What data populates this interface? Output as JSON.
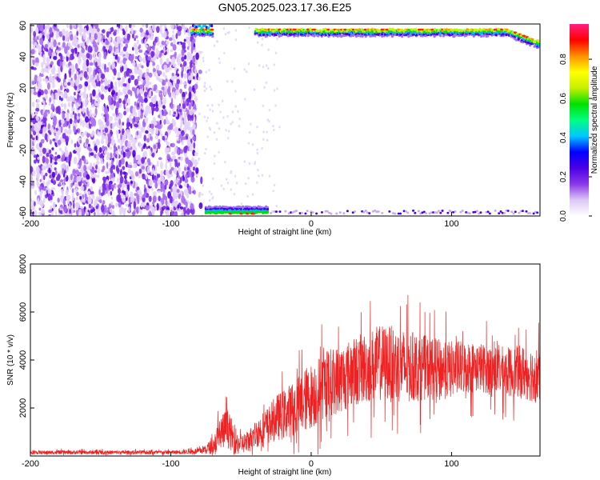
{
  "title": "GN05.2025.023.17.36.E25",
  "chart_data": [
    {
      "type": "heatmap",
      "title": "GN05.2025.023.17.36.E25",
      "xlabel": "Height of straight line (km)",
      "ylabel": "Frequency (Hz)",
      "xlim": [
        -200,
        163
      ],
      "ylim": [
        -62,
        61
      ],
      "x_ticks": [
        -200,
        -100,
        0,
        100
      ],
      "y_ticks": [
        -60,
        -40,
        -20,
        0,
        20,
        40,
        60
      ],
      "grid": false,
      "colorbar": {
        "label": "Normalized spectral amplitude",
        "range": [
          0,
          0.98
        ],
        "ticks": [
          0.0,
          0.2,
          0.4,
          0.6,
          0.8
        ],
        "colors": [
          "#ffffff",
          "#dcc7f5",
          "#8a38e8",
          "#4b00e6",
          "#0000ff",
          "#00c8ff",
          "#00ff80",
          "#00e000",
          "#c8f000",
          "#ffff00",
          "#ff9000",
          "#ff0000",
          "#ff2080"
        ]
      },
      "regions": [
        {
          "description": "diffuse noise",
          "x_range": [
            -200,
            -82
          ],
          "y_range": [
            -62,
            61
          ],
          "amplitude": 0.1
        },
        {
          "description": "band near +Nyquist",
          "x_range": [
            -85,
            163
          ],
          "y_range": [
            48,
            60
          ],
          "amplitude": 0.9
        },
        {
          "description": "band near -Nyquist",
          "x_range": [
            -75,
            -30
          ],
          "y_range": [
            -62,
            -56
          ],
          "amplitude": 0.7
        }
      ]
    },
    {
      "type": "line",
      "xlabel": "Height of straight line (km)",
      "ylabel": "SNR (10 * v/v)",
      "xlim": [
        -200,
        163
      ],
      "ylim": [
        0,
        8000
      ],
      "x_ticks": [
        -200,
        -100,
        0,
        100
      ],
      "y_ticks": [
        2000,
        4000,
        6000,
        8000
      ],
      "grid": false,
      "series": [
        {
          "color": "#ee2222",
          "x": [
            -200,
            -180,
            -160,
            -140,
            -120,
            -100,
            -80,
            -70,
            -65,
            -60,
            -55,
            -50,
            -45,
            -40,
            -35,
            -30,
            -25,
            -20,
            -15,
            -10,
            -5,
            0,
            5,
            10,
            20,
            30,
            40,
            50,
            60,
            70,
            80,
            90,
            100,
            110,
            120,
            130,
            140,
            150,
            160,
            163
          ],
          "y": [
            150,
            150,
            150,
            150,
            150,
            150,
            200,
            400,
            900,
            1200,
            700,
            500,
            600,
            900,
            1100,
            1300,
            1600,
            1700,
            1900,
            2000,
            2300,
            2500,
            2700,
            3000,
            3200,
            3500,
            3700,
            3900,
            3800,
            3700,
            3700,
            3600,
            3600,
            3700,
            3700,
            3600,
            3500,
            3500,
            3400,
            3300
          ],
          "spread": [
            100,
            100,
            100,
            100,
            100,
            100,
            150,
            400,
            1000,
            1000,
            800,
            500,
            600,
            700,
            900,
            1000,
            1200,
            1300,
            1400,
            1600,
            1700,
            1700,
            1800,
            1800,
            1800,
            1800,
            1900,
            2000,
            2000,
            1900,
            1700,
            1600,
            1500,
            1400,
            1300,
            1300,
            1300,
            1400,
            1500,
            1500
          ]
        }
      ]
    }
  ]
}
